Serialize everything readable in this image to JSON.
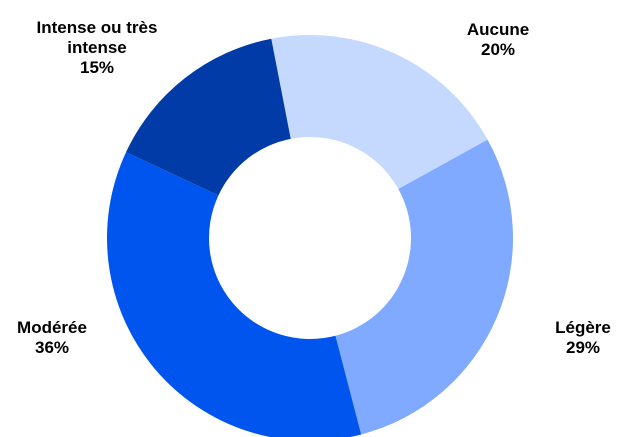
{
  "chart_data": {
    "type": "donut",
    "categories": [
      "Aucune",
      "Légère",
      "Modérée",
      "Intense ou très intense"
    ],
    "values": [
      20,
      29,
      36,
      15
    ],
    "value_labels": [
      "20%",
      "29%",
      "36%",
      "15%"
    ],
    "colors": [
      "#c5d9ff",
      "#80aaff",
      "#0055ee",
      "#003ba8"
    ]
  }
}
